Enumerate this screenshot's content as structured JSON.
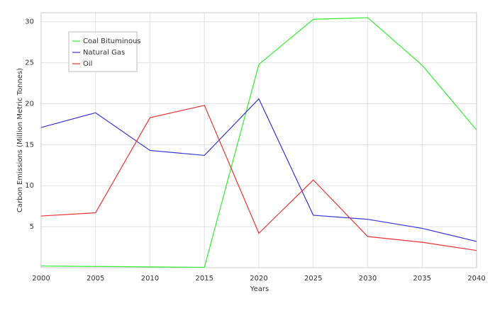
{
  "chart_data": {
    "type": "line",
    "x_label": "Years",
    "y_label": "Carbon Emissions (Million Metric Tonnes)",
    "x": [
      2000,
      2005,
      2010,
      2015,
      2020,
      2025,
      2030,
      2035,
      2040
    ],
    "series": [
      {
        "name": "Coal Bituminous",
        "color": "#33ee33",
        "values": [
          0.2,
          0.15,
          0.1,
          0.05,
          24.8,
          30.3,
          30.5,
          24.7,
          16.8
        ]
      },
      {
        "name": "Natural Gas",
        "color": "#3333dd",
        "values": [
          17.1,
          18.9,
          14.3,
          13.7,
          20.6,
          6.4,
          5.9,
          4.8,
          3.2
        ]
      },
      {
        "name": "Oil",
        "color": "#ee3333",
        "values": [
          6.3,
          6.7,
          18.3,
          19.8,
          4.2,
          10.7,
          3.8,
          3.1,
          2.1
        ]
      }
    ],
    "xlim": [
      2000,
      2040
    ],
    "xticks": [
      2000,
      2005,
      2010,
      2015,
      2020,
      2025,
      2030,
      2035,
      2040
    ],
    "ylim": [
      0,
      31.1
    ],
    "yticks": [
      5,
      10,
      15,
      20,
      25,
      30
    ],
    "grid": true,
    "legend": "upper-left"
  }
}
